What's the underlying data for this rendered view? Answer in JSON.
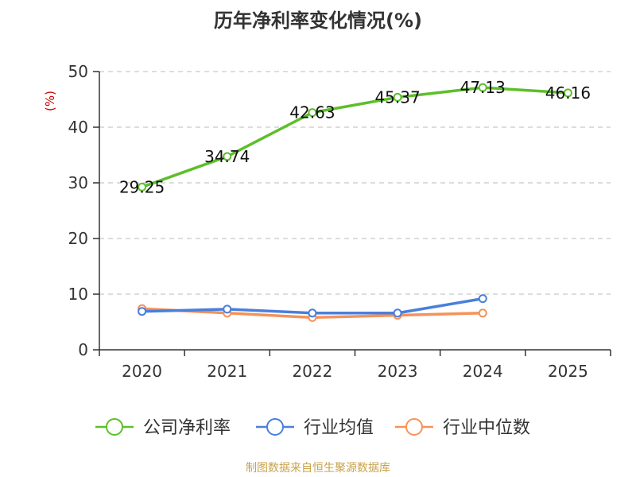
{
  "chart_data": {
    "type": "line",
    "title": "历年净利率变化情况(%)",
    "ylabel": "(%)",
    "xlabel": "",
    "categories": [
      "2020",
      "2021",
      "2022",
      "2023",
      "2024",
      "2025"
    ],
    "ylim": [
      0,
      50
    ],
    "yticks": [
      0,
      10,
      20,
      30,
      40,
      50
    ],
    "grid": true,
    "legend_position": "bottom",
    "series": [
      {
        "name": "公司净利率",
        "color": "#5cbf2a",
        "values": [
          29.25,
          34.74,
          42.63,
          45.37,
          47.13,
          46.16
        ],
        "labels": [
          "29.25",
          "34.74",
          "42.63",
          "45.37",
          "47.13",
          "46.16"
        ]
      },
      {
        "name": "行业均值",
        "color": "#4a7fdc",
        "values": [
          6.9,
          7.3,
          6.6,
          6.6,
          9.2,
          null
        ]
      },
      {
        "name": "行业中位数",
        "color": "#f5925a",
        "values": [
          7.4,
          6.6,
          5.8,
          6.2,
          6.6,
          null
        ]
      }
    ]
  },
  "footer": {
    "source": "制图数据来自恒生聚源数据库"
  }
}
